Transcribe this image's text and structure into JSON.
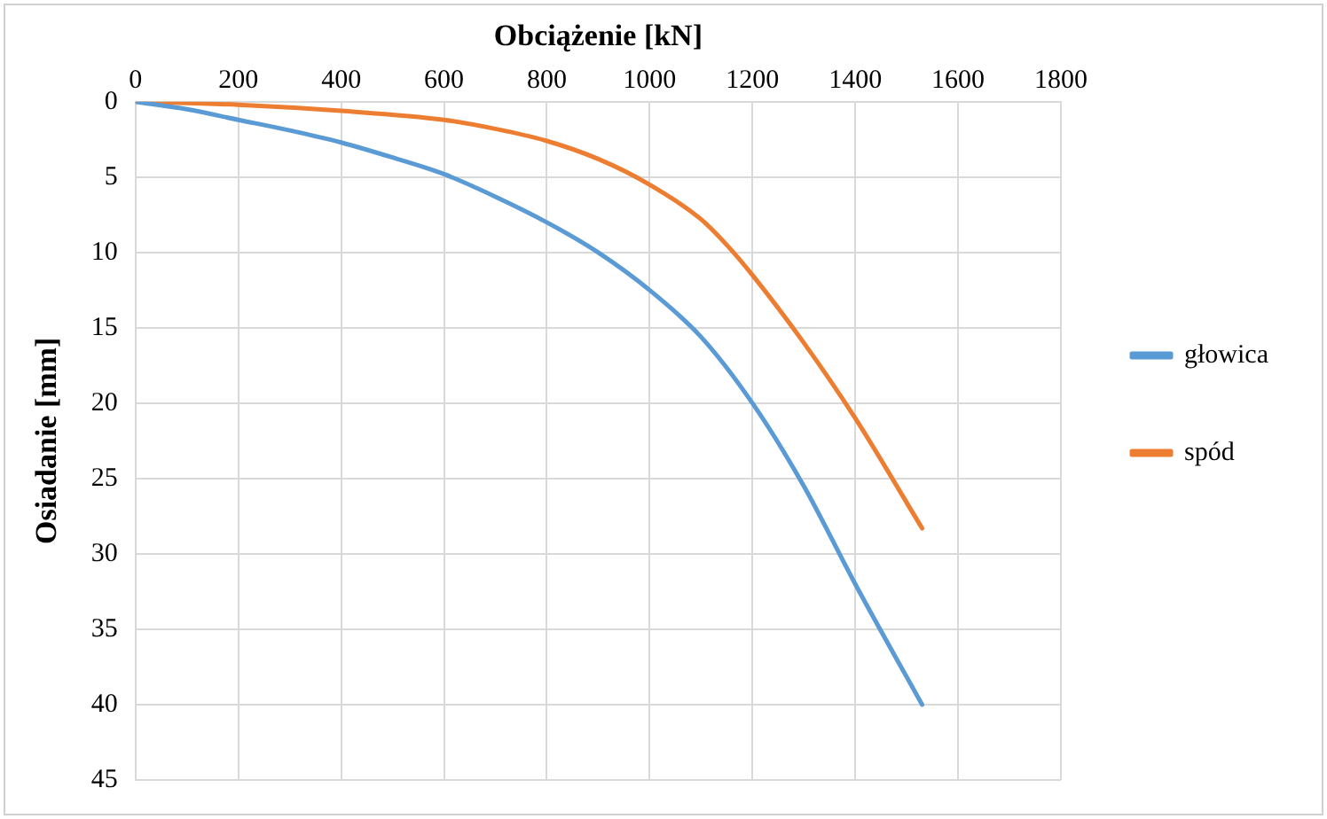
{
  "chart_data": {
    "type": "line",
    "xlabel": "Obciążenie [kN]",
    "ylabel": "Osiadanie [mm]",
    "xlim": [
      0,
      1800
    ],
    "xticks": [
      0,
      200,
      400,
      600,
      800,
      1000,
      1200,
      1400,
      1600,
      1800
    ],
    "ylim": [
      45,
      0
    ],
    "yticks": [
      0,
      5,
      10,
      15,
      20,
      25,
      30,
      35,
      40,
      45
    ],
    "grid": true,
    "legend": "right",
    "marker": "none",
    "line_style": "solid",
    "series": [
      {
        "name": "głowica",
        "color": "#5b9bd5",
        "x": [
          0,
          100,
          200,
          300,
          400,
          500,
          600,
          700,
          800,
          900,
          1000,
          1100,
          1200,
          1300,
          1400,
          1530
        ],
        "values": [
          0,
          0.5,
          1.2,
          1.9,
          2.7,
          3.7,
          4.8,
          6.3,
          8,
          10,
          12.5,
          15.6,
          20,
          25.5,
          32,
          40
        ]
      },
      {
        "name": "spód",
        "color": "#ed7d31",
        "x": [
          0,
          200,
          400,
          600,
          700,
          800,
          900,
          1000,
          1100,
          1150,
          1200,
          1300,
          1400,
          1530
        ],
        "values": [
          0,
          0.2,
          0.6,
          1.2,
          1.8,
          2.6,
          3.8,
          5.5,
          7.8,
          9.5,
          11.5,
          16,
          21,
          28.3
        ]
      }
    ]
  }
}
